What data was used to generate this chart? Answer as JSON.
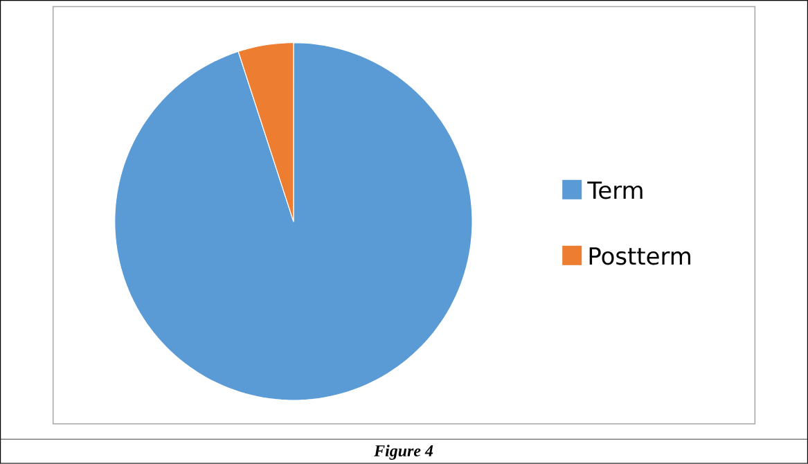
{
  "chart_data": {
    "type": "pie",
    "categories": [
      "Term",
      "Postterm"
    ],
    "values": [
      95,
      5
    ],
    "colors": [
      "#5b9bd5",
      "#ed7d31"
    ],
    "legend": "right",
    "annotations": [
      "Figure 4"
    ]
  }
}
